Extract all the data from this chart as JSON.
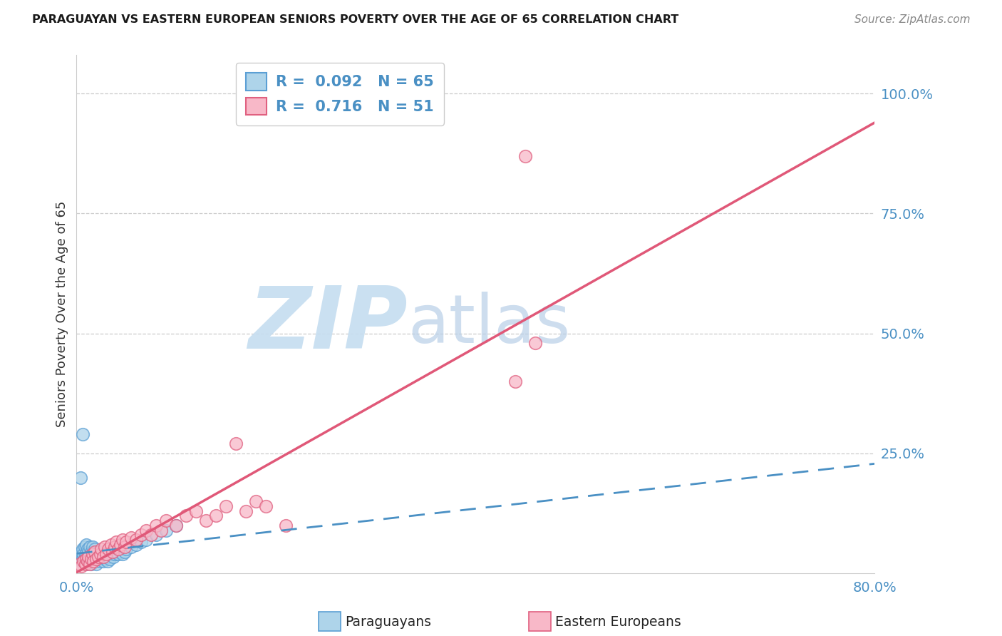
{
  "title": "PARAGUAYAN VS EASTERN EUROPEAN SENIORS POVERTY OVER THE AGE OF 65 CORRELATION CHART",
  "source": "Source: ZipAtlas.com",
  "ylabel": "Seniors Poverty Over the Age of 65",
  "xlim": [
    0.0,
    0.8
  ],
  "ylim": [
    0.0,
    1.08
  ],
  "paraguayans_R": 0.092,
  "paraguayans_N": 65,
  "eastern_R": 0.716,
  "eastern_N": 51,
  "blue_scatter_color": "#aed4ea",
  "blue_edge_color": "#5b9fd4",
  "blue_line_color": "#4a90c4",
  "pink_scatter_color": "#f8b8c8",
  "pink_edge_color": "#e06080",
  "pink_line_color": "#e05878",
  "grid_color": "#cccccc",
  "paraguayans_x": [
    0.002,
    0.003,
    0.004,
    0.005,
    0.005,
    0.006,
    0.006,
    0.007,
    0.007,
    0.008,
    0.008,
    0.009,
    0.009,
    0.01,
    0.01,
    0.01,
    0.011,
    0.011,
    0.012,
    0.012,
    0.013,
    0.013,
    0.014,
    0.014,
    0.015,
    0.015,
    0.016,
    0.016,
    0.017,
    0.018,
    0.018,
    0.019,
    0.02,
    0.02,
    0.021,
    0.022,
    0.023,
    0.024,
    0.025,
    0.026,
    0.027,
    0.028,
    0.029,
    0.03,
    0.031,
    0.032,
    0.033,
    0.035,
    0.037,
    0.038,
    0.04,
    0.042,
    0.044,
    0.046,
    0.048,
    0.05,
    0.055,
    0.06,
    0.065,
    0.07,
    0.08,
    0.09,
    0.1,
    0.004,
    0.006
  ],
  "paraguayans_y": [
    0.04,
    0.035,
    0.03,
    0.025,
    0.045,
    0.03,
    0.05,
    0.025,
    0.04,
    0.03,
    0.055,
    0.025,
    0.04,
    0.02,
    0.035,
    0.06,
    0.03,
    0.05,
    0.025,
    0.045,
    0.03,
    0.055,
    0.025,
    0.04,
    0.02,
    0.045,
    0.03,
    0.055,
    0.04,
    0.025,
    0.05,
    0.035,
    0.02,
    0.04,
    0.03,
    0.045,
    0.025,
    0.035,
    0.03,
    0.04,
    0.025,
    0.035,
    0.03,
    0.04,
    0.025,
    0.035,
    0.03,
    0.04,
    0.035,
    0.04,
    0.045,
    0.04,
    0.045,
    0.04,
    0.045,
    0.05,
    0.055,
    0.06,
    0.065,
    0.07,
    0.08,
    0.09,
    0.1,
    0.2,
    0.29
  ],
  "eastern_x": [
    0.003,
    0.005,
    0.007,
    0.009,
    0.01,
    0.011,
    0.012,
    0.013,
    0.015,
    0.016,
    0.017,
    0.018,
    0.02,
    0.022,
    0.024,
    0.025,
    0.027,
    0.028,
    0.03,
    0.032,
    0.035,
    0.036,
    0.038,
    0.04,
    0.042,
    0.044,
    0.046,
    0.048,
    0.05,
    0.055,
    0.06,
    0.065,
    0.07,
    0.075,
    0.08,
    0.085,
    0.09,
    0.1,
    0.11,
    0.12,
    0.13,
    0.14,
    0.15,
    0.16,
    0.17,
    0.18,
    0.19,
    0.21,
    0.44,
    0.46,
    0.45
  ],
  "eastern_y": [
    0.02,
    0.015,
    0.025,
    0.02,
    0.03,
    0.025,
    0.035,
    0.02,
    0.03,
    0.04,
    0.025,
    0.045,
    0.03,
    0.035,
    0.04,
    0.05,
    0.035,
    0.055,
    0.04,
    0.05,
    0.06,
    0.045,
    0.055,
    0.065,
    0.05,
    0.06,
    0.07,
    0.055,
    0.065,
    0.075,
    0.07,
    0.08,
    0.09,
    0.08,
    0.1,
    0.09,
    0.11,
    0.1,
    0.12,
    0.13,
    0.11,
    0.12,
    0.14,
    0.27,
    0.13,
    0.15,
    0.14,
    0.1,
    0.4,
    0.48,
    0.87
  ]
}
